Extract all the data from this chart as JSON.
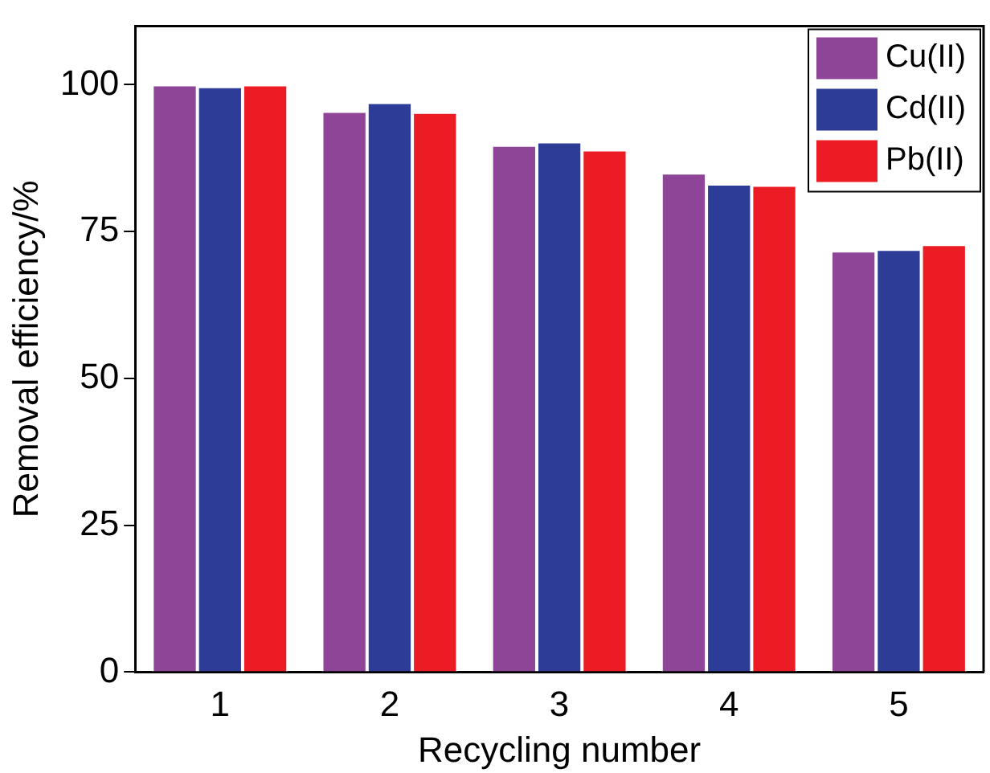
{
  "chart_data": {
    "type": "bar",
    "xlabel": "Recycling number",
    "ylabel": "Removal efficiency/%",
    "categories": [
      "1",
      "2",
      "3",
      "4",
      "5"
    ],
    "series": [
      {
        "name": "Cu(II)",
        "color": "#8e4597",
        "values": [
          100,
          95.5,
          89.7,
          85.0,
          71.7
        ]
      },
      {
        "name": "Cd(II)",
        "color": "#2d3c96",
        "values": [
          99.7,
          97.0,
          90.3,
          83.1,
          72.0
        ]
      },
      {
        "name": "Pb(II)",
        "color": "#ec1c24",
        "values": [
          100,
          95.3,
          88.9,
          82.9,
          72.8
        ]
      }
    ],
    "ylim": [
      0,
      110
    ],
    "yticks": [
      0,
      25,
      50,
      75,
      100
    ],
    "grid": false,
    "legend": "top right"
  }
}
